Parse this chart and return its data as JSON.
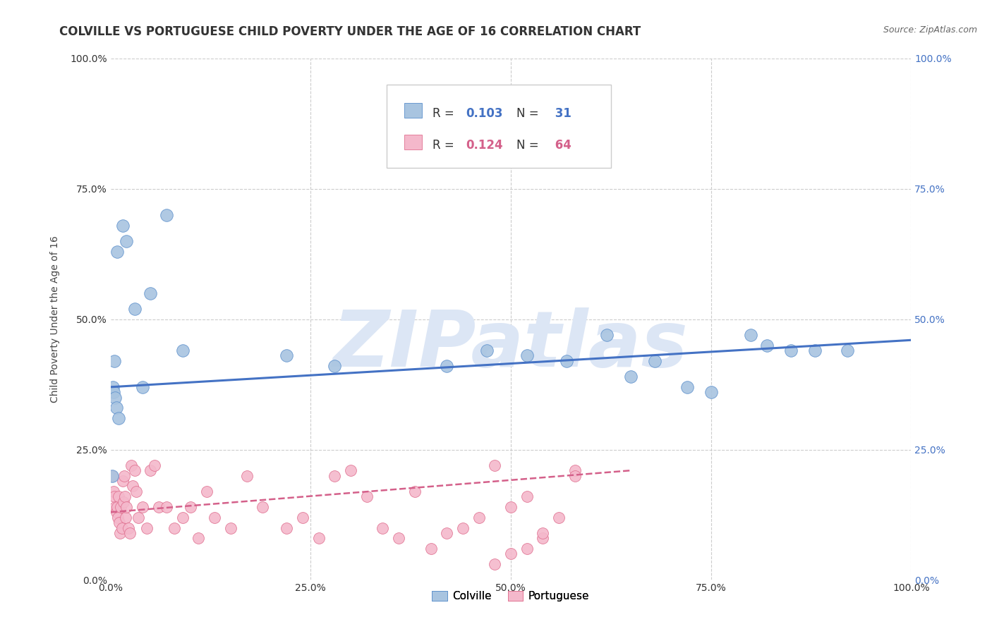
{
  "title": "COLVILLE VS PORTUGUESE CHILD POVERTY UNDER THE AGE OF 16 CORRELATION CHART",
  "source": "Source: ZipAtlas.com",
  "ylabel": "Child Poverty Under the Age of 16",
  "colville_R": "0.103",
  "colville_N": "31",
  "portuguese_R": "0.124",
  "portuguese_N": "64",
  "colville_x": [
    0.5,
    1.5,
    0.3,
    0.8,
    2.0,
    0.2,
    0.4,
    0.6,
    0.7,
    1.0,
    3.0,
    4.0,
    5.0,
    7.0,
    9.0,
    22,
    28,
    42,
    47,
    52,
    57,
    62,
    65,
    68,
    72,
    75,
    80,
    82,
    85,
    88,
    92
  ],
  "colville_y": [
    42,
    68,
    37,
    63,
    65,
    20,
    36,
    35,
    33,
    31,
    52,
    37,
    55,
    70,
    44,
    43,
    41,
    41,
    44,
    43,
    42,
    47,
    39,
    42,
    37,
    36,
    47,
    45,
    44,
    44,
    44
  ],
  "portuguese_x": [
    0.2,
    0.4,
    0.5,
    0.6,
    0.7,
    0.8,
    0.9,
    1.0,
    1.1,
    1.2,
    1.3,
    1.4,
    1.5,
    1.6,
    1.7,
    1.8,
    1.9,
    2.0,
    2.2,
    2.4,
    2.6,
    2.8,
    3.0,
    3.2,
    3.5,
    4.0,
    4.5,
    5.0,
    5.5,
    6.0,
    7.0,
    8.0,
    9.0,
    10.0,
    11.0,
    12.0,
    13.0,
    15.0,
    17.0,
    19.0,
    22.0,
    24.0,
    26.0,
    28.0,
    30.0,
    32.0,
    34.0,
    36.0,
    38.0,
    40.0,
    42.0,
    44.0,
    46.0,
    48.0,
    50.0,
    52.0,
    54.0,
    56.0,
    58.0,
    48.0,
    50.0,
    52.0,
    54.0,
    58.0
  ],
  "portuguese_y": [
    20,
    17,
    16,
    14,
    13,
    14,
    12,
    16,
    11,
    9,
    14,
    10,
    19,
    15,
    20,
    16,
    12,
    14,
    10,
    9,
    22,
    18,
    21,
    17,
    12,
    14,
    10,
    21,
    22,
    14,
    14,
    10,
    12,
    14,
    8,
    17,
    12,
    10,
    20,
    14,
    10,
    12,
    8,
    20,
    21,
    16,
    10,
    8,
    17,
    6,
    9,
    10,
    12,
    3,
    5,
    6,
    8,
    12,
    21,
    22,
    14,
    16,
    9,
    20
  ],
  "colville_color": "#a8c4e0",
  "colville_edge_color": "#5b8fcc",
  "colville_line_color": "#4472c4",
  "portuguese_color": "#f4b8cb",
  "portuguese_edge_color": "#e07090",
  "portuguese_line_color": "#d4608a",
  "bg_color": "#ffffff",
  "grid_color": "#cccccc",
  "xlim": [
    0,
    100
  ],
  "ylim": [
    0,
    100
  ],
  "xticks": [
    0,
    25,
    50,
    75,
    100
  ],
  "yticks": [
    0,
    25,
    50,
    75,
    100
  ],
  "xticklabels": [
    "0.0%",
    "25.0%",
    "50.0%",
    "75.0%",
    "100.0%"
  ],
  "yticklabels": [
    "0.0%",
    "25.0%",
    "50.0%",
    "75.0%",
    "100.0%"
  ],
  "title_fontsize": 12,
  "label_fontsize": 10,
  "tick_fontsize": 10,
  "watermark_text": "ZIPatlas",
  "watermark_color": "#dce6f5",
  "colville_trend": [
    0,
    37,
    100,
    46
  ],
  "portuguese_trend": [
    0,
    13,
    65,
    21
  ]
}
